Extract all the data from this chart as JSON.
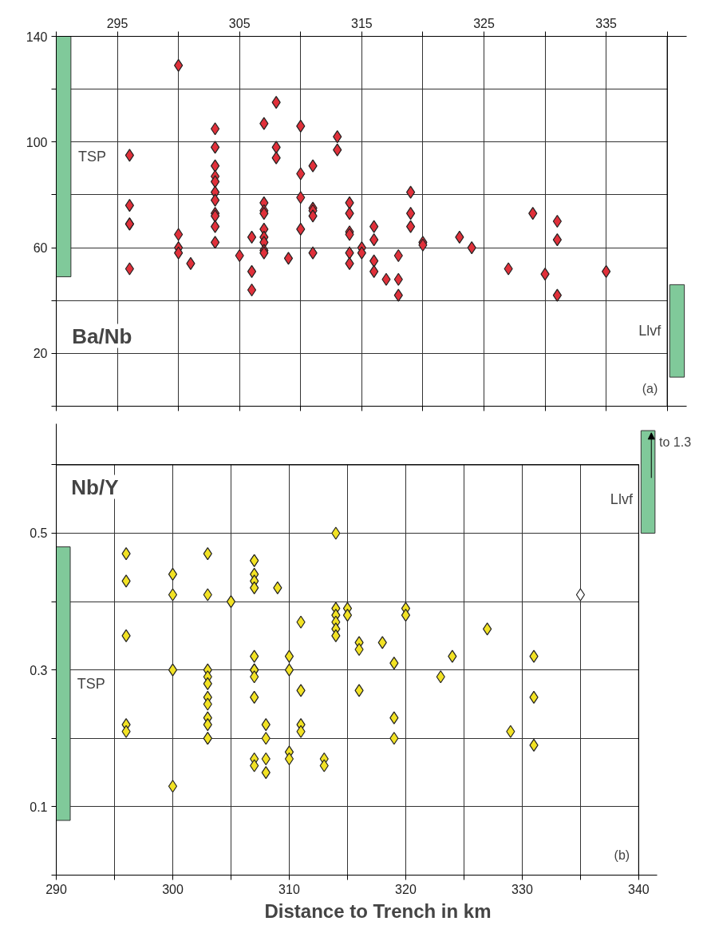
{
  "chart_data": [
    {
      "type": "scatter",
      "title": "Ba/Nb",
      "marker": "diamond",
      "grid": true,
      "xlim": [
        290,
        341.6
      ],
      "ylim": [
        0,
        140
      ],
      "xticks": [
        {
          "value": 290,
          "label": null
        },
        295,
        {
          "value": 300,
          "label": null
        },
        305,
        {
          "value": 310,
          "label": null
        },
        315,
        {
          "value": 320,
          "label": null
        },
        325,
        {
          "value": 330,
          "label": null
        },
        335,
        {
          "value": 340,
          "label": null
        }
      ],
      "yticks": [
        {
          "value": 0,
          "label": null
        },
        20,
        {
          "value": 40,
          "label": null
        },
        60,
        {
          "value": 80,
          "label": null
        },
        100,
        {
          "value": 120,
          "label": null
        },
        140
      ],
      "annotations": [
        "(a)"
      ],
      "series": [
        {
          "type": "bar",
          "name": "TSP",
          "color": "#80c99a",
          "x": [
            290.6
          ],
          "base": [
            49
          ],
          "values": [
            91
          ]
        },
        {
          "type": "bar",
          "name": "Llvf",
          "color": "#80c99a",
          "x": [
            340.8
          ],
          "base": [
            11
          ],
          "values": [
            35
          ]
        },
        {
          "color": "#e0303a",
          "x": [
            296,
            296,
            296,
            296,
            296,
            300,
            300,
            300,
            300,
            301,
            303,
            303,
            303,
            303,
            303,
            303,
            303,
            303,
            303,
            303,
            303,
            305,
            306,
            306,
            306,
            307,
            307,
            307,
            307,
            307,
            307,
            307,
            307,
            307,
            308,
            308,
            308,
            309,
            310,
            310,
            310,
            310,
            311,
            311,
            311,
            311,
            311,
            313,
            313,
            314,
            314,
            314,
            314,
            314,
            314,
            315,
            315,
            316,
            316,
            316,
            316,
            317,
            318,
            318,
            318,
            319,
            319,
            319,
            320,
            320,
            323,
            324,
            327,
            329,
            330,
            331,
            331,
            331,
            335
          ],
          "values": [
            95,
            76,
            69,
            69,
            52,
            129,
            65,
            60,
            58,
            54,
            105,
            98,
            91,
            87,
            85,
            81,
            78,
            73,
            72,
            68,
            62,
            57,
            64,
            51,
            44,
            107,
            77,
            74,
            73,
            67,
            64,
            62,
            59,
            58,
            115,
            98,
            94,
            56,
            106,
            88,
            79,
            67,
            91,
            75,
            74,
            72,
            58,
            102,
            97,
            77,
            73,
            66,
            65,
            58,
            54,
            60,
            58,
            68,
            63,
            55,
            51,
            48,
            57,
            48,
            42,
            81,
            73,
            68,
            62,
            61,
            64,
            60,
            52,
            73,
            50,
            70,
            63,
            42,
            51
          ]
        }
      ]
    },
    {
      "type": "scatter",
      "title": "Nb/Y",
      "xlabel": "Distance to Trench in km",
      "marker": "diamond",
      "grid": true,
      "xlim": [
        290,
        341.6
      ],
      "ylim": [
        0,
        0.66
      ],
      "xticks": [
        290,
        {
          "value": 295,
          "label": null
        },
        300,
        {
          "value": 305,
          "label": null
        },
        310,
        {
          "value": 315,
          "label": null
        },
        320,
        {
          "value": 325,
          "label": null
        },
        330,
        {
          "value": 335,
          "label": null
        },
        340
      ],
      "yticks": [
        {
          "value": 0,
          "label": null
        },
        0.1,
        {
          "value": 0.2,
          "label": null
        },
        0.3,
        {
          "value": 0.4,
          "label": null
        },
        0.5,
        {
          "value": 0.6,
          "label": null
        }
      ],
      "annotations": [
        "(b)",
        "to 1.3"
      ],
      "series": [
        {
          "type": "bar",
          "name": "TSP",
          "color": "#80c99a",
          "x": [
            290.6
          ],
          "base": [
            0.08
          ],
          "values": [
            0.4
          ]
        },
        {
          "type": "bar",
          "name": "Llvf",
          "color": "#80c99a",
          "x": [
            340.8
          ],
          "base": [
            0.5
          ],
          "values": [
            0.15
          ]
        },
        {
          "color": "#f2e224",
          "x": [
            296,
            296,
            296,
            296,
            296,
            300,
            300,
            300,
            300,
            303,
            303,
            303,
            303,
            303,
            303,
            303,
            303,
            303,
            303,
            303,
            305,
            307,
            307,
            307,
            307,
            307,
            307,
            307,
            307,
            307,
            307,
            307,
            307,
            308,
            308,
            308,
            308,
            309,
            310,
            310,
            310,
            310,
            311,
            311,
            311,
            311,
            313,
            313,
            314,
            314,
            314,
            314,
            314,
            314,
            315,
            315,
            316,
            316,
            316,
            318,
            319,
            319,
            319,
            320,
            320,
            323,
            324,
            327,
            329,
            331,
            331,
            331
          ],
          "values": [
            0.47,
            0.43,
            0.35,
            0.22,
            0.21,
            0.44,
            0.41,
            0.3,
            0.13,
            0.47,
            0.41,
            0.3,
            0.29,
            0.28,
            0.26,
            0.25,
            0.23,
            0.22,
            0.2,
            0.2,
            0.4,
            0.46,
            0.46,
            0.44,
            0.43,
            0.42,
            0.32,
            0.3,
            0.3,
            0.29,
            0.26,
            0.17,
            0.16,
            0.22,
            0.2,
            0.17,
            0.15,
            0.42,
            0.32,
            0.3,
            0.18,
            0.17,
            0.37,
            0.27,
            0.22,
            0.21,
            0.17,
            0.16,
            0.5,
            0.39,
            0.38,
            0.37,
            0.36,
            0.35,
            0.39,
            0.38,
            0.34,
            0.33,
            0.27,
            0.34,
            0.31,
            0.23,
            0.2,
            0.39,
            0.38,
            0.29,
            0.32,
            0.36,
            0.21,
            0.32,
            0.26,
            0.19
          ]
        },
        {
          "color": "#ffffff",
          "x": [
            335
          ],
          "values": [
            0.41
          ]
        }
      ]
    }
  ]
}
